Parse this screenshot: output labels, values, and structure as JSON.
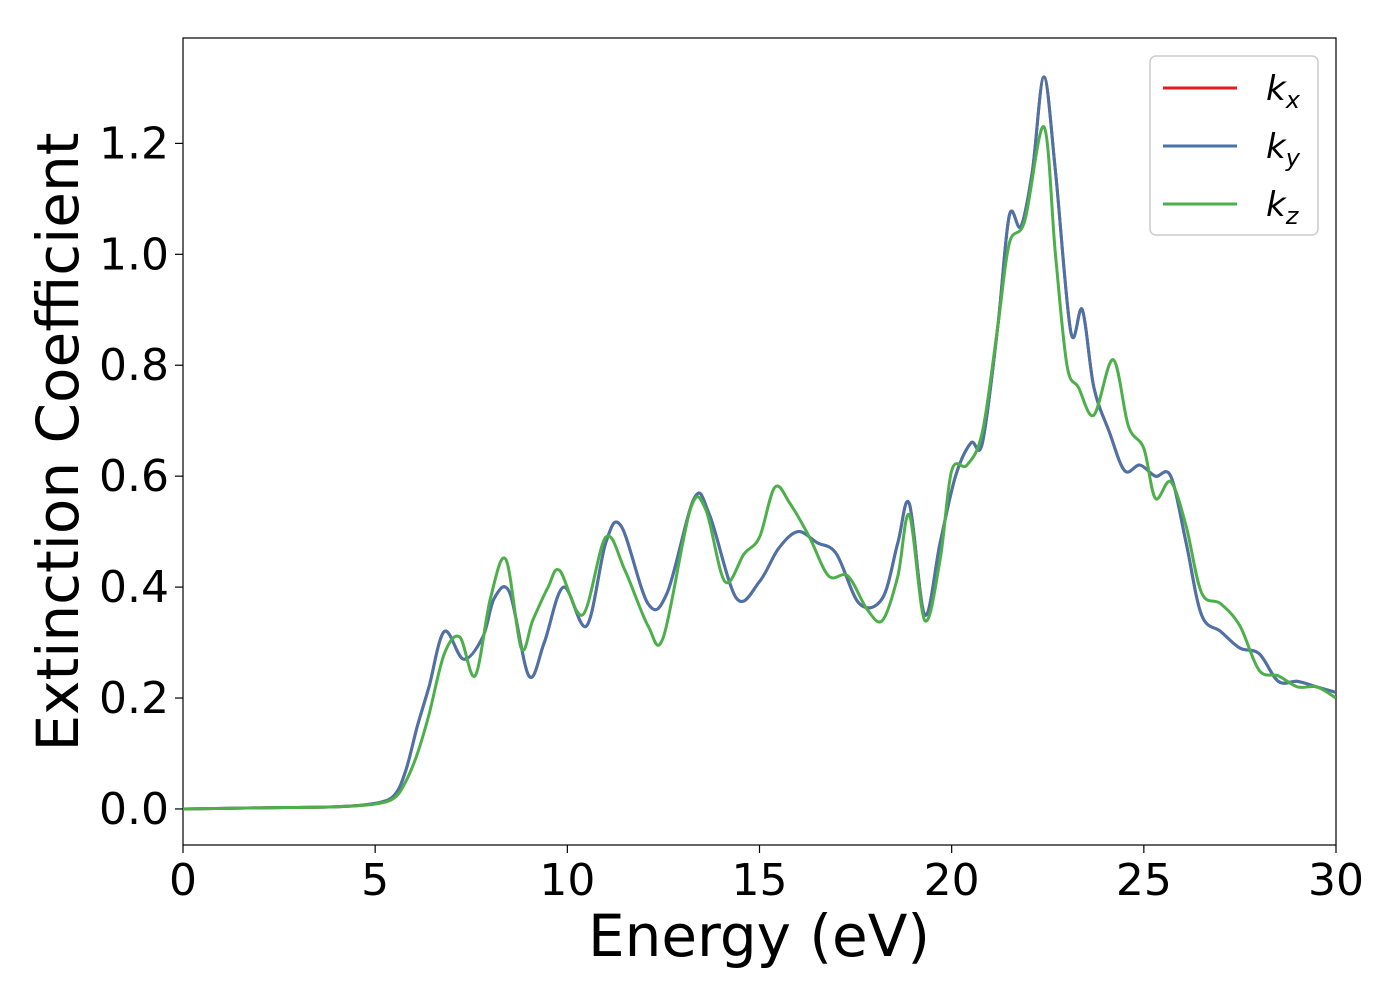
{
  "chart_data": {
    "type": "line",
    "xlabel": "Energy (eV)",
    "ylabel": "Extinction Coefficient",
    "xlim": [
      0,
      30
    ],
    "ylim": [
      -0.065,
      1.39
    ],
    "xticks": [
      0,
      5,
      10,
      15,
      20,
      25,
      30
    ],
    "xtick_labels": [
      "0",
      "5",
      "10",
      "15",
      "20",
      "25",
      "30"
    ],
    "yticks": [
      0.0,
      0.2,
      0.4,
      0.6,
      0.8,
      1.0,
      1.2
    ],
    "ytick_labels": [
      "0.0",
      "0.2",
      "0.4",
      "0.6",
      "0.8",
      "1.0",
      "1.2"
    ],
    "grid": false,
    "legend_position": "top-right",
    "series": [
      {
        "name": "k",
        "subscript": "x",
        "color": "#e41a1c",
        "x": [
          0,
          2,
          4,
          5,
          5.5,
          5.8,
          6.1,
          6.4,
          6.8,
          7.3,
          7.8,
          8.1,
          8.5,
          9.0,
          9.4,
          9.9,
          10.5,
          11.0,
          11.4,
          12.1,
          12.6,
          13.3,
          13.7,
          14.4,
          15.0,
          15.5,
          16.0,
          16.5,
          17.0,
          17.6,
          18.2,
          18.6,
          18.9,
          19.3,
          19.7,
          20.1,
          20.5,
          20.8,
          21.2,
          21.5,
          21.8,
          22.1,
          22.4,
          22.7,
          23.1,
          23.4,
          23.7,
          24.1,
          24.5,
          24.9,
          25.3,
          25.7,
          26.1,
          26.5,
          27.0,
          27.5,
          28.0,
          28.5,
          29.0,
          29.5,
          30.0
        ],
        "y": [
          0.0,
          0.002,
          0.004,
          0.01,
          0.025,
          0.07,
          0.15,
          0.22,
          0.32,
          0.27,
          0.31,
          0.38,
          0.39,
          0.24,
          0.3,
          0.4,
          0.33,
          0.48,
          0.51,
          0.37,
          0.39,
          0.56,
          0.53,
          0.38,
          0.41,
          0.47,
          0.5,
          0.48,
          0.46,
          0.37,
          0.38,
          0.48,
          0.55,
          0.35,
          0.48,
          0.6,
          0.66,
          0.66,
          0.87,
          1.07,
          1.05,
          1.15,
          1.32,
          1.15,
          0.86,
          0.9,
          0.76,
          0.68,
          0.61,
          0.62,
          0.6,
          0.6,
          0.48,
          0.35,
          0.32,
          0.29,
          0.28,
          0.23,
          0.23,
          0.22,
          0.21
        ]
      },
      {
        "name": "k",
        "subscript": "y",
        "color": "#4a74a8",
        "x": [
          0,
          2,
          4,
          5,
          5.5,
          5.8,
          6.1,
          6.4,
          6.8,
          7.3,
          7.8,
          8.1,
          8.5,
          9.0,
          9.4,
          9.9,
          10.5,
          11.0,
          11.4,
          12.1,
          12.6,
          13.3,
          13.7,
          14.4,
          15.0,
          15.5,
          16.0,
          16.5,
          17.0,
          17.6,
          18.2,
          18.6,
          18.9,
          19.3,
          19.7,
          20.1,
          20.5,
          20.8,
          21.2,
          21.5,
          21.8,
          22.1,
          22.4,
          22.7,
          23.1,
          23.4,
          23.7,
          24.1,
          24.5,
          24.9,
          25.3,
          25.7,
          26.1,
          26.5,
          27.0,
          27.5,
          28.0,
          28.5,
          29.0,
          29.5,
          30.0
        ],
        "y": [
          0.0,
          0.002,
          0.004,
          0.01,
          0.025,
          0.07,
          0.15,
          0.22,
          0.32,
          0.27,
          0.31,
          0.38,
          0.39,
          0.24,
          0.3,
          0.4,
          0.33,
          0.48,
          0.51,
          0.37,
          0.39,
          0.56,
          0.53,
          0.38,
          0.41,
          0.47,
          0.5,
          0.48,
          0.46,
          0.37,
          0.38,
          0.48,
          0.55,
          0.35,
          0.48,
          0.6,
          0.66,
          0.66,
          0.87,
          1.07,
          1.05,
          1.15,
          1.32,
          1.15,
          0.86,
          0.9,
          0.76,
          0.68,
          0.61,
          0.62,
          0.6,
          0.6,
          0.48,
          0.35,
          0.32,
          0.29,
          0.28,
          0.23,
          0.23,
          0.22,
          0.21
        ]
      },
      {
        "name": "k",
        "subscript": "z",
        "color": "#4daf4a",
        "x": [
          0,
          2,
          4,
          5,
          5.5,
          5.8,
          6.1,
          6.4,
          6.8,
          7.2,
          7.6,
          8.0,
          8.4,
          8.8,
          9.1,
          9.5,
          9.8,
          10.4,
          11.0,
          11.5,
          12.1,
          12.5,
          13.2,
          13.6,
          14.1,
          14.6,
          15.0,
          15.4,
          15.8,
          16.3,
          16.8,
          17.3,
          17.8,
          18.2,
          18.6,
          18.9,
          19.3,
          19.7,
          20.0,
          20.4,
          20.8,
          21.2,
          21.5,
          21.9,
          22.4,
          22.7,
          23.0,
          23.3,
          23.7,
          24.2,
          24.6,
          25.0,
          25.3,
          25.7,
          26.1,
          26.5,
          27.0,
          27.5,
          28.0,
          28.5,
          29.0,
          29.5,
          30.0
        ],
        "y": [
          0.0,
          0.002,
          0.004,
          0.009,
          0.02,
          0.05,
          0.1,
          0.17,
          0.28,
          0.31,
          0.24,
          0.38,
          0.45,
          0.29,
          0.34,
          0.4,
          0.43,
          0.35,
          0.49,
          0.43,
          0.33,
          0.31,
          0.54,
          0.54,
          0.41,
          0.46,
          0.49,
          0.58,
          0.55,
          0.49,
          0.42,
          0.42,
          0.36,
          0.34,
          0.42,
          0.53,
          0.34,
          0.45,
          0.61,
          0.62,
          0.68,
          0.87,
          1.02,
          1.06,
          1.23,
          1.0,
          0.8,
          0.76,
          0.71,
          0.81,
          0.69,
          0.65,
          0.56,
          0.59,
          0.51,
          0.39,
          0.37,
          0.33,
          0.25,
          0.24,
          0.22,
          0.22,
          0.2
        ]
      }
    ]
  }
}
